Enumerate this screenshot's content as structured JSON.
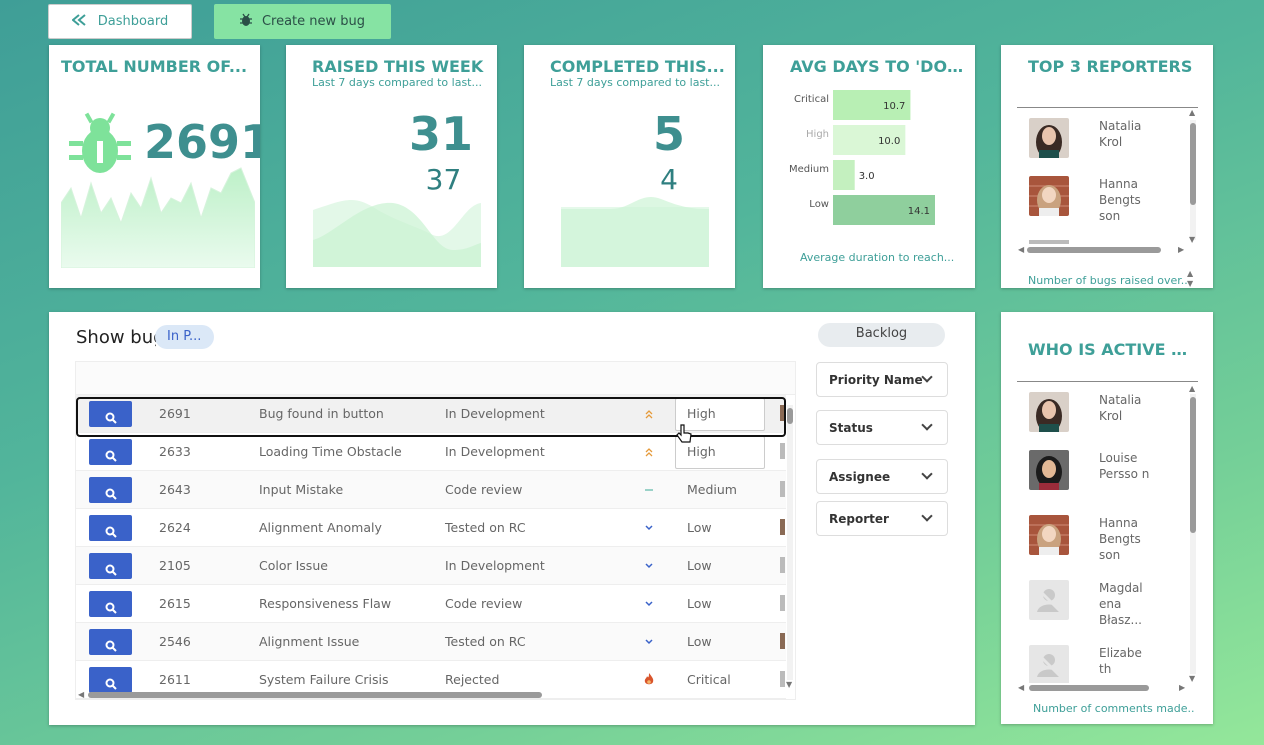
{
  "toolbar": {
    "dashboard_label": "Dashboard",
    "create_bug_label": "Create new bug"
  },
  "kpi": {
    "total": {
      "title": "TOTAL NUMBER OF...",
      "value": "2691"
    },
    "raised": {
      "title": "RAISED THIS WEEK",
      "subtitle": "Last 7 days compared to last...",
      "value": "31",
      "compare": "37"
    },
    "completed": {
      "title": "COMPLETED THIS...",
      "subtitle": "Last 7 days compared to last...",
      "value": "5",
      "compare": "4"
    }
  },
  "avg_days": {
    "title": "AVG DAYS TO 'DONE'",
    "footer": "Average duration to reach..."
  },
  "chart_data": {
    "type": "bar",
    "categories": [
      "Critical",
      "High",
      "Medium",
      "Low"
    ],
    "values": [
      10.7,
      10.0,
      3.0,
      14.1
    ],
    "title": "AVG DAYS TO 'DONE'",
    "xlim": [
      0,
      14.1
    ],
    "colors": [
      "#b8efb4",
      "#daf7d6",
      "#c4f0bf",
      "#8fcf9d"
    ]
  },
  "top_reporters": {
    "title": "TOP 3 REPORTERS",
    "footer": "Number of bugs raised over...",
    "items": [
      {
        "name": "Natalia Krol"
      },
      {
        "name": "Hanna Bengts son"
      }
    ]
  },
  "active": {
    "title": "WHO IS ACTIVE IN...",
    "footer": "Number of comments made..",
    "items": [
      {
        "name": "Natalia Krol"
      },
      {
        "name": "Louise Persso n"
      },
      {
        "name": "Hanna Bengts son"
      },
      {
        "name": "Magdal ena Błasz..."
      },
      {
        "name": "Elizabe th"
      }
    ]
  },
  "bugs": {
    "title": "Show bug",
    "status_chip": "In P...",
    "backlog_label": "Backlog",
    "filters": [
      "Priority Name",
      "Status",
      "Assignee",
      "Reporter"
    ],
    "rows": [
      {
        "id": "2691",
        "name": "Bug found in button",
        "status": "In Development",
        "priority": "High",
        "icon": "double-chevron-up"
      },
      {
        "id": "2633",
        "name": "Loading Time Obstacle",
        "status": "In Development",
        "priority": "High",
        "icon": "double-chevron-up"
      },
      {
        "id": "2643",
        "name": "Input Mistake",
        "status": "Code review",
        "priority": "Medium",
        "icon": "dash"
      },
      {
        "id": "2624",
        "name": "Alignment Anomaly",
        "status": "Tested on RC",
        "priority": "Low",
        "icon": "chevron-down"
      },
      {
        "id": "2105",
        "name": "Color Issue",
        "status": "In Development",
        "priority": "Low",
        "icon": "chevron-down"
      },
      {
        "id": "2615",
        "name": "Responsiveness Flaw",
        "status": "Code review",
        "priority": "Low",
        "icon": "chevron-down"
      },
      {
        "id": "2546",
        "name": "Alignment Issue",
        "status": "Tested on RC",
        "priority": "Low",
        "icon": "chevron-down"
      },
      {
        "id": "2611",
        "name": "System Failure Crisis",
        "status": "Rejected",
        "priority": "Critical",
        "icon": "fire"
      }
    ]
  }
}
